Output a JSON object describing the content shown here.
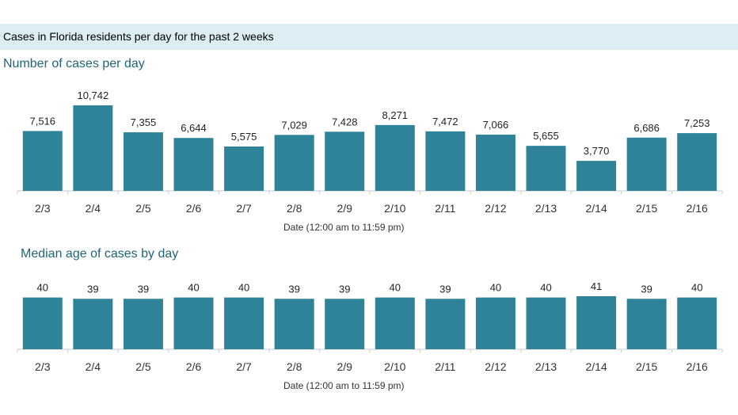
{
  "header": {
    "title": "Cases in Florida residents per day for the past 2 weeks"
  },
  "colors": {
    "bar": "#2f8399",
    "header_bg": "#dcedf3",
    "title_text": "#1f6577",
    "axis": "#c8c8c8"
  },
  "chart_data": [
    {
      "type": "bar",
      "title": "Number of cases per day",
      "xlabel": "Date (12:00 am to 11:59 pm)",
      "ylabel": "",
      "categories": [
        "2/3",
        "2/4",
        "2/5",
        "2/6",
        "2/7",
        "2/8",
        "2/9",
        "2/10",
        "2/11",
        "2/12",
        "2/13",
        "2/14",
        "2/15",
        "2/16"
      ],
      "values": [
        7516,
        10742,
        7355,
        6644,
        5575,
        7029,
        7428,
        8271,
        7472,
        7066,
        5655,
        3770,
        6686,
        7253
      ],
      "value_labels": [
        "7,516",
        "10,742",
        "7,355",
        "6,644",
        "5,575",
        "7,029",
        "7,428",
        "8,271",
        "7,472",
        "7,066",
        "5,655",
        "3,770",
        "6,686",
        "7,253"
      ],
      "ylim": [
        0,
        10742
      ],
      "grid": false,
      "legend": "none"
    },
    {
      "type": "bar",
      "title": "Median age of cases by day",
      "xlabel": "Date (12:00 am to 11:59 pm)",
      "ylabel": "",
      "categories": [
        "2/3",
        "2/4",
        "2/5",
        "2/6",
        "2/7",
        "2/8",
        "2/9",
        "2/10",
        "2/11",
        "2/12",
        "2/13",
        "2/14",
        "2/15",
        "2/16"
      ],
      "values": [
        40,
        39,
        39,
        40,
        40,
        39,
        39,
        40,
        39,
        40,
        40,
        41,
        39,
        40
      ],
      "value_labels": [
        "40",
        "39",
        "39",
        "40",
        "40",
        "39",
        "39",
        "40",
        "39",
        "40",
        "40",
        "41",
        "39",
        "40"
      ],
      "ylim": [
        0,
        41
      ],
      "grid": false,
      "legend": "none"
    }
  ]
}
